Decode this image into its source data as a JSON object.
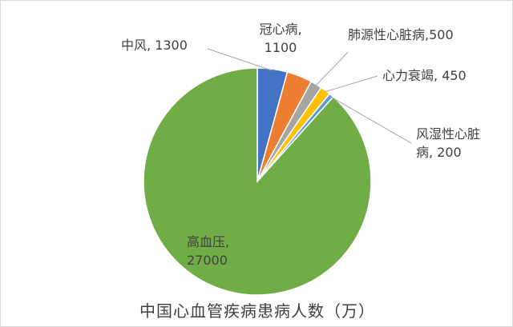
{
  "chart_data": {
    "type": "pie",
    "title": "中国心血管疾病患病人数（万）",
    "categories": [
      "中风",
      "冠心病",
      "肺源性心脏病",
      "心力衰竭",
      "风湿性心脏病",
      "高血压"
    ],
    "values": [
      1300,
      1100,
      500,
      450,
      200,
      27000
    ],
    "colors": [
      "#4472C4",
      "#ED7D31",
      "#A5A5A5",
      "#FFC000",
      "#5B9BD5",
      "#70AD47"
    ],
    "labels": [
      {
        "name": "中风,",
        "value": "1300"
      },
      {
        "name": "冠心病,",
        "value": "1100"
      },
      {
        "name": "肺源性心脏病,",
        "value": "500"
      },
      {
        "name": "心力衰竭,",
        "value": "450"
      },
      {
        "name": "风湿性心脏",
        "value": "病, 200"
      },
      {
        "name": "高血压,",
        "value": "27000"
      }
    ],
    "legend": "none",
    "label_position": "outside-with-leader-lines"
  }
}
